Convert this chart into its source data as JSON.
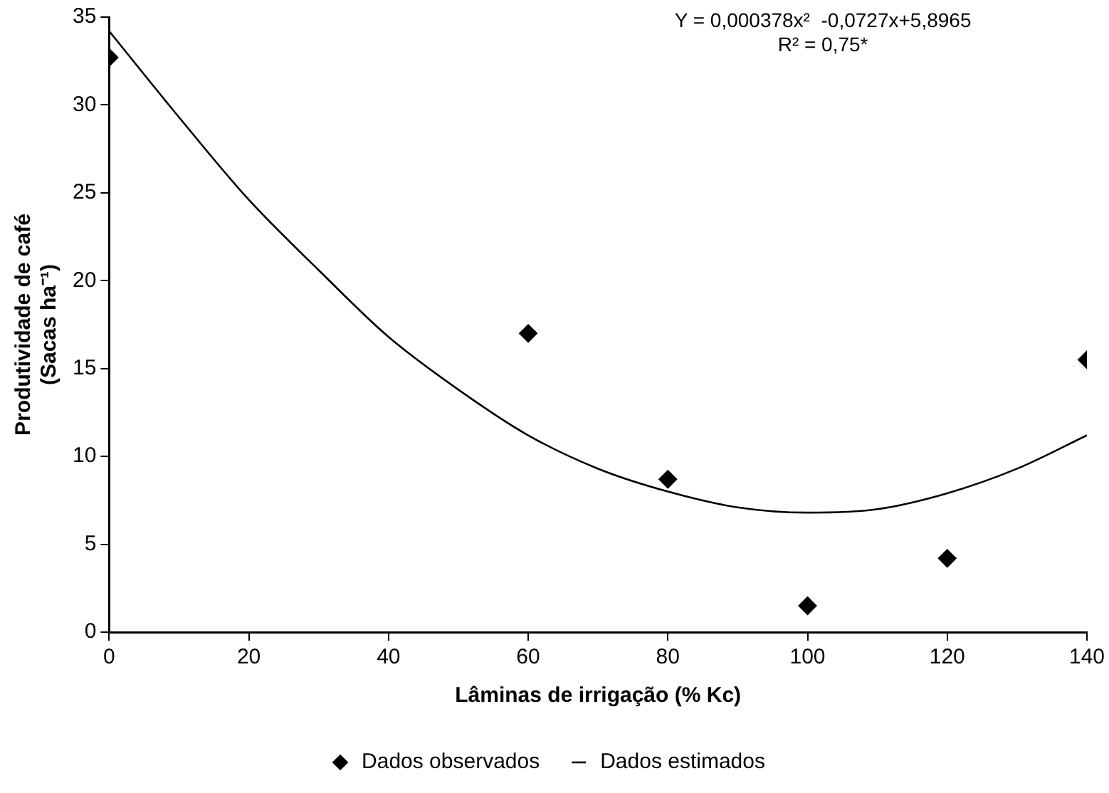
{
  "chart_data": {
    "type": "scatter",
    "xlabel": "Lâminas de irrigação (% Kc)",
    "ylabel": [
      "Produtividade de café",
      "(Sacas ha⁻¹)"
    ],
    "annotations": [
      "Y = 0,000378x²  -0,0727x+5,8965",
      "R² = 0,75*"
    ],
    "xlim": [
      0,
      140
    ],
    "xticks": [
      0,
      20,
      40,
      60,
      80,
      100,
      120,
      140
    ],
    "ylim": [
      0,
      35
    ],
    "yticks": [
      0,
      5,
      10,
      15,
      20,
      25,
      30,
      35
    ],
    "grid": false,
    "legend": "bottom",
    "series": [
      {
        "name": "Dados observados",
        "marker": "diamond",
        "color": "#000000",
        "x": [
          0,
          60,
          80,
          100,
          120,
          140
        ],
        "values": [
          32.7,
          17.0,
          8.7,
          1.5,
          4.2,
          15.5
        ]
      },
      {
        "name": "Dados estimados",
        "type": "line",
        "marker": "none",
        "line_style": "solid",
        "color": "#000000",
        "x": [
          0,
          10,
          20,
          30,
          40,
          50,
          60,
          70,
          80,
          90,
          100,
          110,
          120,
          130,
          140
        ],
        "values": [
          34.2,
          29.3,
          24.6,
          20.6,
          16.8,
          13.8,
          11.2,
          9.3,
          8.0,
          7.1,
          6.8,
          7.0,
          7.9,
          9.3,
          11.2
        ]
      }
    ]
  }
}
